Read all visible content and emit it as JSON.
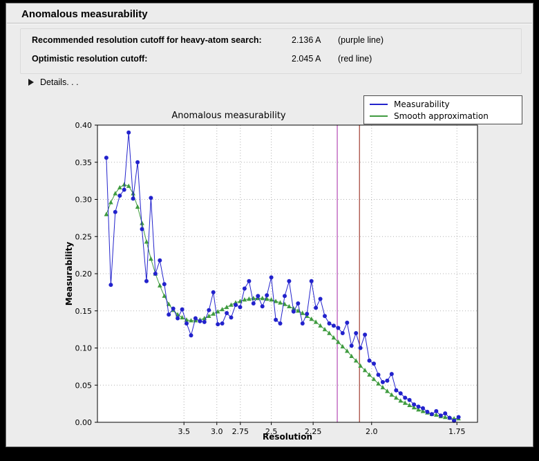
{
  "window": {
    "title": "Anomalous measurability"
  },
  "info": {
    "rows": [
      {
        "label": "Recommended resolution cutoff for heavy-atom search:",
        "value": "2.136 A",
        "note": "(purple line)"
      },
      {
        "label": "Optimistic resolution cutoff:",
        "value": "2.045 A",
        "note": "(red line)"
      }
    ],
    "details_label": "Details. . ."
  },
  "chart_data": {
    "type": "line",
    "title": "Anomalous measurability",
    "xlabel": "Resolution",
    "ylabel": "Measurability",
    "x_axis_note": "x axis is 1/d^2; resolution in Angstrom decreases left to right",
    "xlim": [
      0.004,
      0.345
    ],
    "ylim": [
      0.0,
      0.4
    ],
    "grid": true,
    "legend_position": "top-right",
    "x_ticks": [
      {
        "d": 3.5,
        "label": "3.5"
      },
      {
        "d": 3.0,
        "label": "3.0"
      },
      {
        "d": 2.75,
        "label": "2.75"
      },
      {
        "d": 2.5,
        "label": "2.5"
      },
      {
        "d": 2.25,
        "label": "2.25"
      },
      {
        "d": 2.0,
        "label": "2.0"
      },
      {
        "d": 1.75,
        "label": "1.75"
      }
    ],
    "y_ticks": [
      {
        "v": 0.0,
        "label": "0.00"
      },
      {
        "v": 0.05,
        "label": "0.05"
      },
      {
        "v": 0.1,
        "label": "0.10"
      },
      {
        "v": 0.15,
        "label": "0.15"
      },
      {
        "v": 0.2,
        "label": "0.20"
      },
      {
        "v": 0.25,
        "label": "0.25"
      },
      {
        "v": 0.3,
        "label": "0.30"
      },
      {
        "v": 0.35,
        "label": "0.35"
      },
      {
        "v": 0.4,
        "label": "0.40"
      }
    ],
    "vlines": [
      {
        "resolution": 2.136,
        "color": "#b44ab4",
        "name": "recommended-cutoff-purple"
      },
      {
        "resolution": 2.045,
        "color": "#a03c30",
        "name": "optimistic-cutoff-red"
      }
    ],
    "x": [
      0.012,
      0.016,
      0.02,
      0.024,
      0.028,
      0.032,
      0.036,
      0.04,
      0.044,
      0.048,
      0.052,
      0.056,
      0.06,
      0.064,
      0.068,
      0.072,
      0.076,
      0.08,
      0.084,
      0.088,
      0.092,
      0.096,
      0.1,
      0.104,
      0.108,
      0.112,
      0.116,
      0.12,
      0.124,
      0.128,
      0.132,
      0.136,
      0.14,
      0.144,
      0.148,
      0.152,
      0.156,
      0.16,
      0.164,
      0.168,
      0.172,
      0.176,
      0.18,
      0.184,
      0.188,
      0.192,
      0.196,
      0.2,
      0.204,
      0.208,
      0.212,
      0.216,
      0.22,
      0.224,
      0.228,
      0.232,
      0.236,
      0.24,
      0.244,
      0.248,
      0.252,
      0.256,
      0.26,
      0.264,
      0.268,
      0.272,
      0.276,
      0.28,
      0.284,
      0.288,
      0.292,
      0.296,
      0.3,
      0.304,
      0.308,
      0.312,
      0.316,
      0.32,
      0.324,
      0.328
    ],
    "series": [
      {
        "name": "Measurability",
        "color": "#2222cc",
        "marker": "circle",
        "values": [
          0.356,
          0.185,
          0.283,
          0.305,
          0.313,
          0.39,
          0.301,
          0.35,
          0.26,
          0.19,
          0.302,
          0.2,
          0.218,
          0.186,
          0.145,
          0.153,
          0.14,
          0.152,
          0.133,
          0.117,
          0.14,
          0.136,
          0.135,
          0.151,
          0.175,
          0.132,
          0.133,
          0.147,
          0.141,
          0.158,
          0.155,
          0.18,
          0.19,
          0.16,
          0.17,
          0.156,
          0.171,
          0.195,
          0.138,
          0.133,
          0.17,
          0.19,
          0.149,
          0.16,
          0.133,
          0.146,
          0.19,
          0.154,
          0.166,
          0.143,
          0.133,
          0.13,
          0.127,
          0.12,
          0.134,
          0.103,
          0.12,
          0.1,
          0.118,
          0.083,
          0.079,
          0.064,
          0.054,
          0.056,
          0.065,
          0.043,
          0.039,
          0.033,
          0.03,
          0.024,
          0.021,
          0.019,
          0.014,
          0.011,
          0.015,
          0.009,
          0.012,
          0.006,
          0.002,
          0.007
        ]
      },
      {
        "name": "Smooth approximation",
        "color": "#3f9b3f",
        "marker": "triangle",
        "values": [
          0.28,
          0.296,
          0.308,
          0.316,
          0.32,
          0.318,
          0.308,
          0.29,
          0.268,
          0.243,
          0.22,
          0.2,
          0.184,
          0.17,
          0.159,
          0.151,
          0.145,
          0.141,
          0.138,
          0.137,
          0.137,
          0.138,
          0.14,
          0.143,
          0.146,
          0.149,
          0.152,
          0.155,
          0.158,
          0.161,
          0.163,
          0.165,
          0.166,
          0.167,
          0.167,
          0.167,
          0.166,
          0.165,
          0.163,
          0.161,
          0.159,
          0.156,
          0.153,
          0.15,
          0.147,
          0.143,
          0.139,
          0.135,
          0.13,
          0.125,
          0.12,
          0.114,
          0.108,
          0.102,
          0.096,
          0.089,
          0.083,
          0.076,
          0.07,
          0.064,
          0.058,
          0.052,
          0.047,
          0.042,
          0.037,
          0.033,
          0.029,
          0.026,
          0.023,
          0.02,
          0.017,
          0.015,
          0.013,
          0.011,
          0.01,
          0.008,
          0.007,
          0.006,
          0.005,
          0.005
        ]
      }
    ],
    "colors": {
      "plot_bg": "#ffffff",
      "figure_bg": "#ececec",
      "grid": "#b0b0b0"
    }
  }
}
